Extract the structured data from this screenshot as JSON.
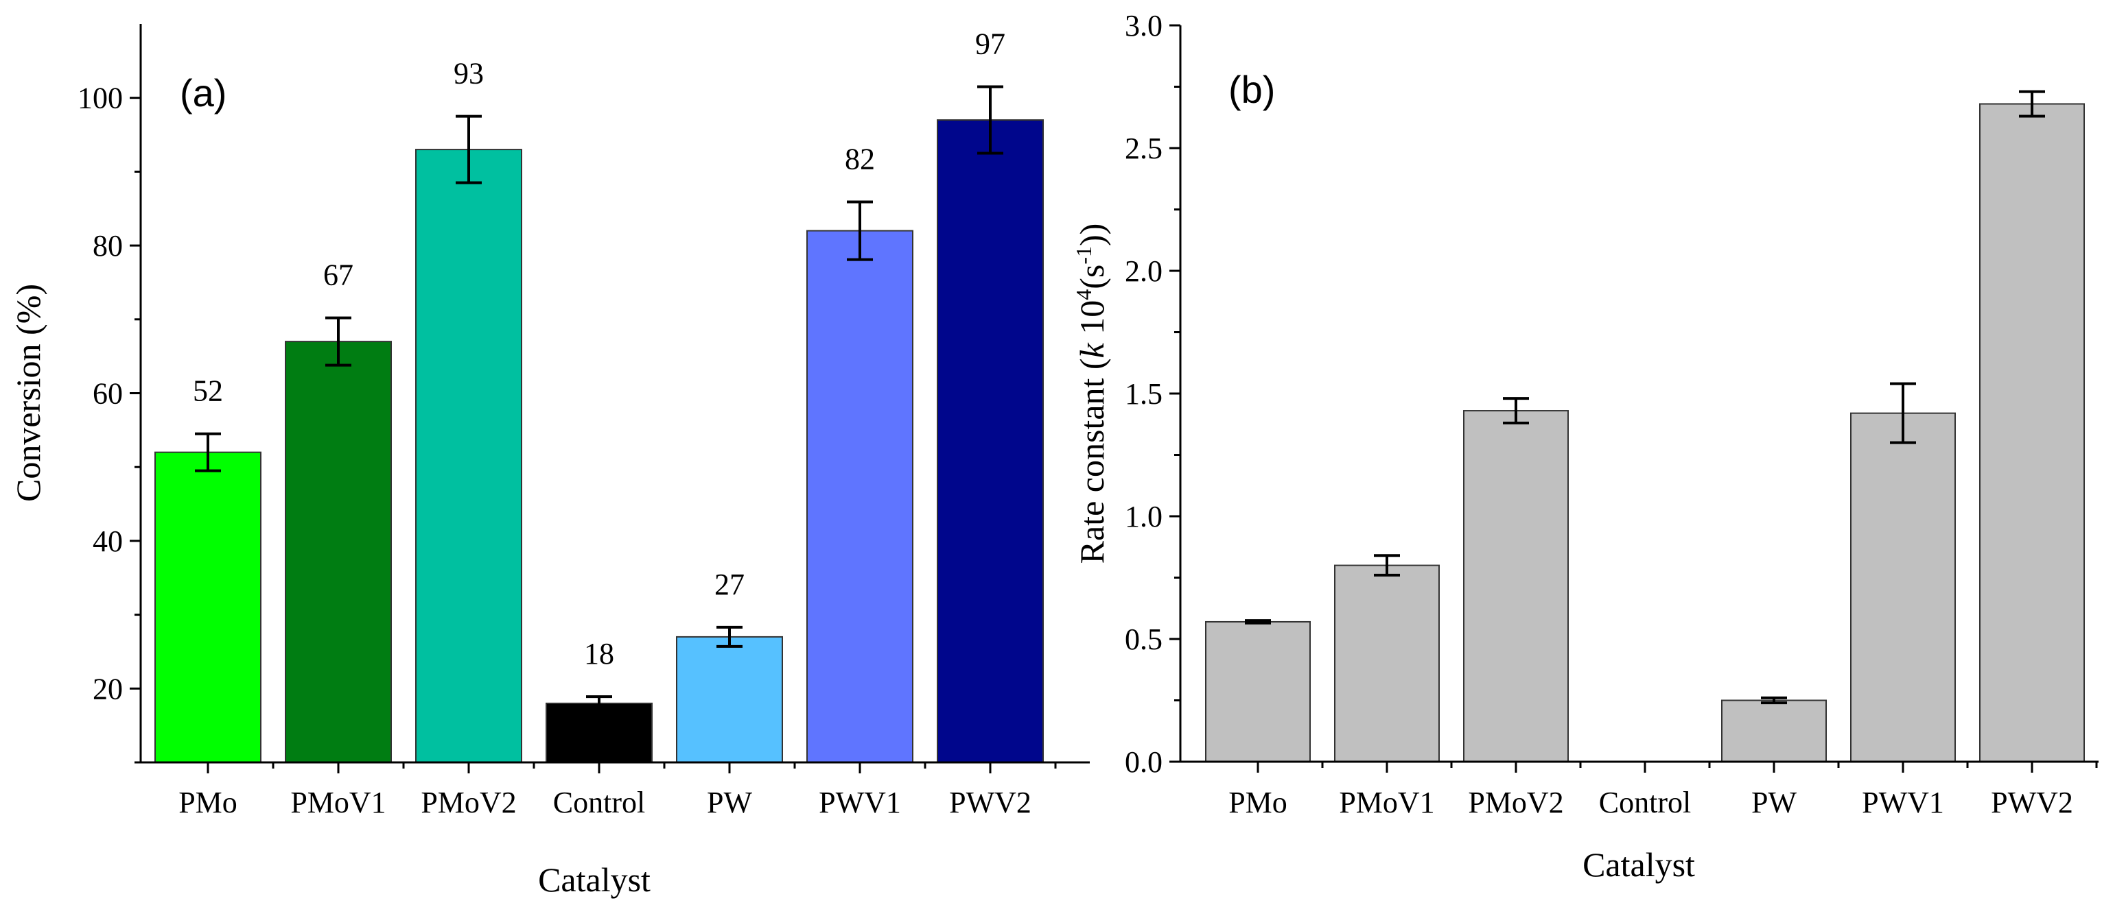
{
  "chart_data": [
    {
      "type": "bar",
      "panel_label": "(a)",
      "categories": [
        "PMo",
        "PMoV1",
        "PMoV2",
        "Control",
        "PW",
        "PWV1",
        "PWV2"
      ],
      "values": [
        52,
        67,
        93,
        18,
        27,
        82,
        97
      ],
      "errors": [
        2.5,
        3.2,
        4.5,
        0.9,
        1.3,
        3.9,
        4.5
      ],
      "data_labels": [
        "52",
        "67",
        "93",
        "18",
        "27",
        "82",
        "97"
      ],
      "colors": [
        "#00ff00",
        "#007d12",
        "#00c0a0",
        "#000000",
        "#56c1ff",
        "#5f75ff",
        "#00068c"
      ],
      "xlabel": "Catalyst",
      "ylabel": "Conversion (%)",
      "ylim": [
        10,
        110
      ],
      "yticks": [
        20,
        40,
        60,
        80,
        100
      ],
      "ytick_labels": [
        "20",
        "40",
        "60",
        "80",
        "100"
      ]
    },
    {
      "type": "bar",
      "panel_label": "(b)",
      "categories": [
        "PMo",
        "PMoV1",
        "PMoV2",
        "Control",
        "PW",
        "PWV1",
        "PWV2"
      ],
      "values": [
        0.57,
        0.8,
        1.43,
        0,
        0.25,
        1.42,
        2.68
      ],
      "errors": [
        0.005,
        0.04,
        0.05,
        0,
        0.01,
        0.12,
        0.05
      ],
      "colors": [
        "#c0c0c0",
        "#c0c0c0",
        "#c0c0c0",
        "#c0c0c0",
        "#c0c0c0",
        "#c0c0c0",
        "#c0c0c0"
      ],
      "xlabel": "Catalyst",
      "ylabel": {
        "prefix": "Rate constant (",
        "k": "k",
        "mid": " 10",
        "sup1": "4",
        "mid2": "(s",
        "sup2": "-1",
        "suffix": "))"
      },
      "ylim": [
        0,
        3.0
      ],
      "yticks": [
        0,
        0.5,
        1.0,
        1.5,
        2.0,
        2.5,
        3.0
      ],
      "ytick_labels": [
        "0.0",
        "0.5",
        "1.0",
        "1.5",
        "2.0",
        "2.5",
        "3.0"
      ]
    }
  ]
}
